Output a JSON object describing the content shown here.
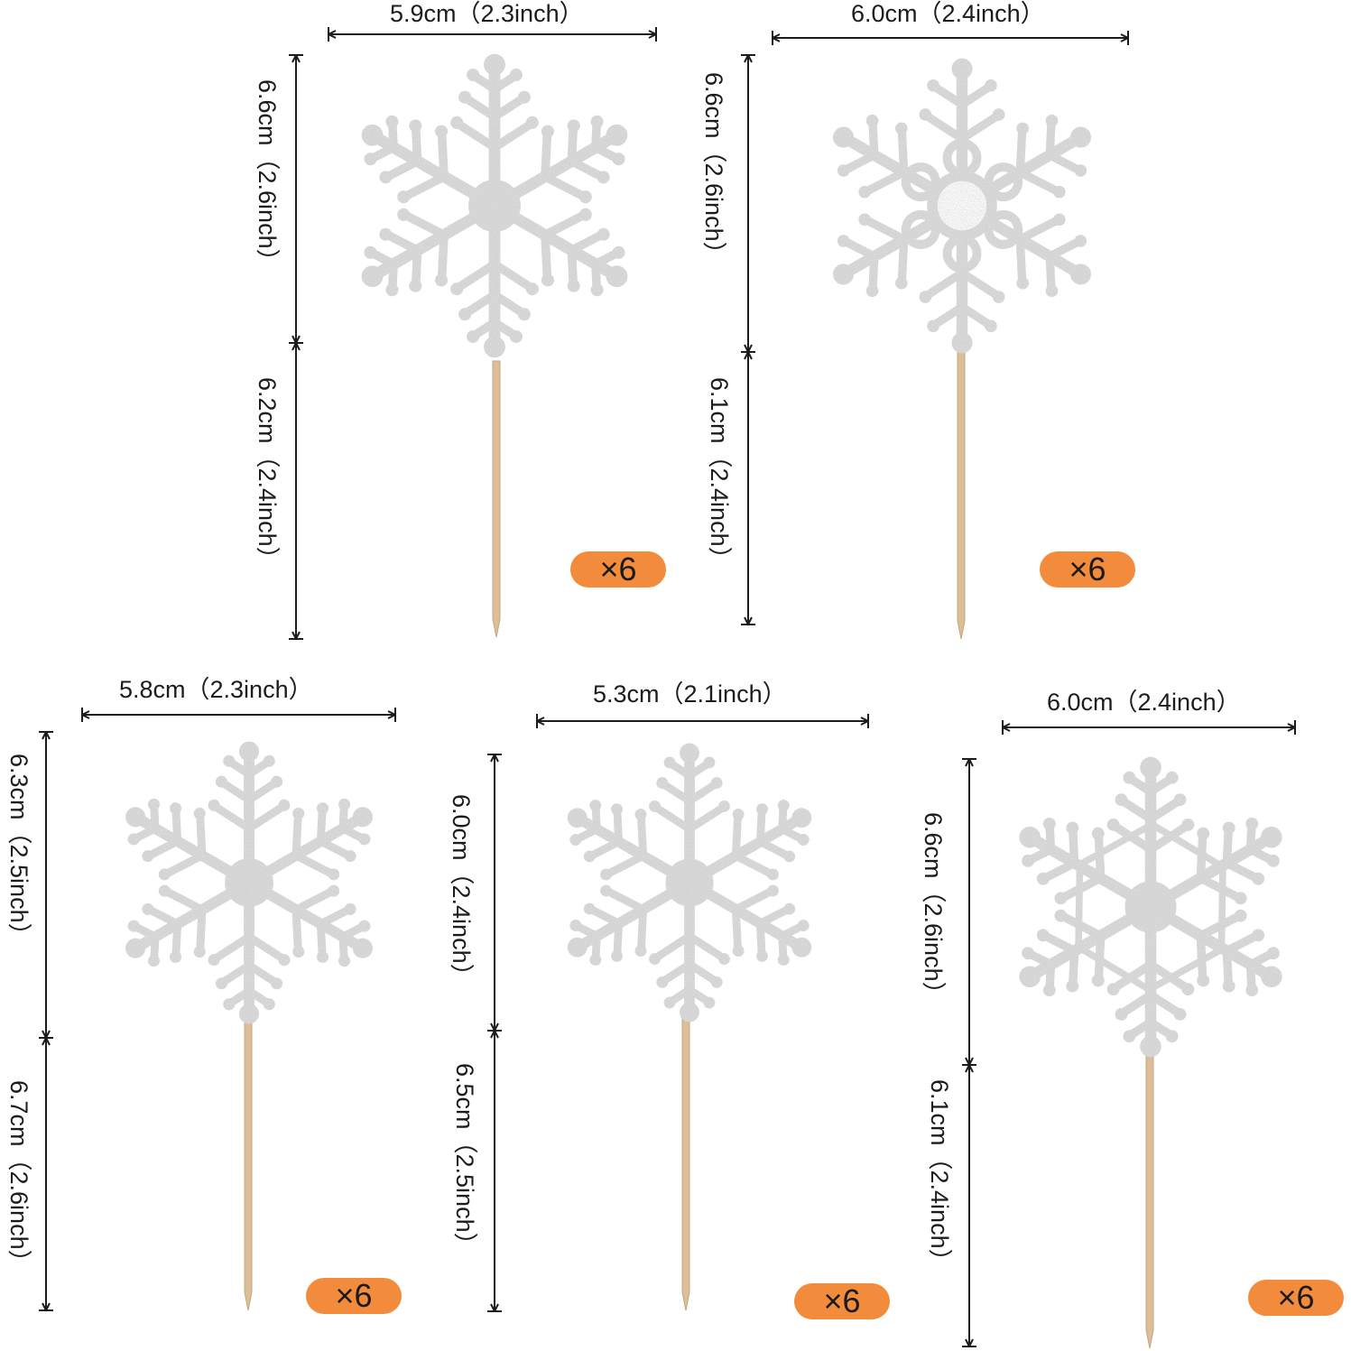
{
  "colors": {
    "badge": "#f28c3c",
    "snowflake": "#dcdcdc",
    "stick": "#dcbf98",
    "dimension_line": "#1c1c1c"
  },
  "toppers": [
    {
      "icon": "snowflake-icon",
      "width_label": "5.9cm（2.3inch）",
      "head_label": "6.6cm（2.6inch）",
      "stick_label": "6.2cm（2.4inch）",
      "quantity": "×6"
    },
    {
      "icon": "snowflake-icon",
      "width_label": "6.0cm（2.4inch）",
      "head_label": "6.6cm（2.6inch）",
      "stick_label": "6.1cm（2.4inch）",
      "quantity": "×6"
    },
    {
      "icon": "snowflake-icon",
      "width_label": "5.8cm（2.3inch）",
      "head_label": "6.3cm（2.5inch）",
      "stick_label": "6.7cm（2.6inch）",
      "quantity": "×6"
    },
    {
      "icon": "snowflake-icon",
      "width_label": "5.3cm（2.1inch）",
      "head_label": "6.0cm（2.4inch）",
      "stick_label": "6.5cm（2.5inch）",
      "quantity": "×6"
    },
    {
      "icon": "snowflake-icon",
      "width_label": "6.0cm（2.4inch）",
      "head_label": "6.6cm（2.6inch）",
      "stick_label": "6.1cm（2.4inch）",
      "quantity": "×6"
    }
  ]
}
